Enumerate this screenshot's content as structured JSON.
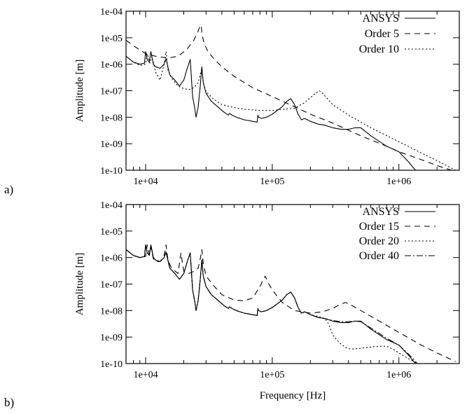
{
  "chart_data": [
    {
      "type": "line",
      "panel_label": "a)",
      "xscale": "log",
      "yscale": "log",
      "xlim": [
        7000,
        3000000
      ],
      "ylim": [
        1e-10,
        0.0001
      ],
      "xticks": [
        "1e+04",
        "1e+05",
        "1e+06"
      ],
      "yticks": [
        "1e-04",
        "1e-05",
        "1e-06",
        "1e-07",
        "1e-08",
        "1e-09",
        "1e-10"
      ],
      "xlabel": "",
      "ylabel": "Amplitude [m]",
      "legend_position": "top-right",
      "grid": false,
      "series": [
        {
          "name": "ANSYS",
          "dash": "solid",
          "x": [
            7000,
            8000,
            9000,
            9800,
            10000,
            10300,
            10700,
            11000,
            11500,
            12000,
            13000,
            14000,
            14500,
            15500,
            17000,
            18500,
            19300,
            20000,
            21500,
            22500,
            23500,
            24500,
            25000,
            26000,
            27000,
            27800,
            28500,
            30000,
            33000,
            37000,
            42000,
            45000,
            46000,
            48000,
            52000,
            60000,
            70000,
            76000,
            77000,
            78000,
            82000,
            90000,
            100000,
            120000,
            130000,
            140000,
            150000,
            160000,
            170000,
            180000,
            190000,
            200000,
            230000,
            260000,
            300000,
            350000,
            400000,
            450000,
            500000,
            600000,
            800000,
            1000000,
            1200000,
            1350000
          ],
          "values": [
            2e-06,
            1.2e-06,
            1e-06,
            1.1e-06,
            3e-06,
            1.5e-06,
            1.2e-06,
            3e-06,
            1e-06,
            8e-07,
            7e-07,
            1e-06,
            1.6e-06,
            4e-07,
            2.5e-07,
            1.5e-07,
            2e-07,
            2.5e-07,
            8e-07,
            1.5e-06,
            6e-08,
            2e-08,
            1e-08,
            2.5e-08,
            1.5e-07,
            8e-07,
            2e-07,
            8e-08,
            4e-08,
            2.5e-08,
            1.5e-08,
            1.2e-08,
            1.4e-08,
            1.2e-08,
            1e-08,
            8e-09,
            7e-09,
            6.5e-09,
            1.2e-08,
            1e-08,
            9e-09,
            1e-08,
            1.3e-08,
            2.5e-08,
            4e-08,
            5e-08,
            3e-08,
            1.3e-08,
            8e-09,
            9e-09,
            8e-09,
            7e-09,
            5.5e-09,
            5e-09,
            4e-09,
            3.5e-09,
            3.5e-09,
            4e-09,
            4e-09,
            2e-09,
            8e-10,
            5e-10,
            2e-10,
            1e-10
          ]
        },
        {
          "name": "Order 5",
          "dash": "8,6",
          "x": [
            7000,
            8000,
            9000,
            10000,
            12000,
            15000,
            18000,
            21000,
            24000,
            26000,
            27000,
            27500,
            28000,
            29000,
            31000,
            35000,
            40000,
            50000,
            70000,
            100000,
            150000,
            200000,
            300000,
            500000,
            800000,
            1000000,
            1500000,
            2000000,
            2600000
          ],
          "values": [
            8e-06,
            5e-06,
            3.5e-06,
            2.5e-06,
            2e-06,
            1.7e-06,
            2e-06,
            3.5e-06,
            8e-06,
            1.8e-05,
            3e-05,
            2.5e-05,
            1.2e-05,
            6e-06,
            3e-06,
            1.5e-06,
            8e-07,
            3.5e-07,
            1.3e-07,
            6e-08,
            2.5e-08,
            1.3e-08,
            6e-09,
            2e-09,
            8e-10,
            5e-10,
            2.5e-10,
            1.5e-10,
            1e-10
          ]
        },
        {
          "name": "Order 10",
          "dash": "2,3",
          "x": [
            7000,
            8000,
            9000,
            10000,
            10300,
            10800,
            11200,
            12000,
            13000,
            14000,
            14500,
            15000,
            16000,
            18000,
            20000,
            22000,
            24000,
            26000,
            27000,
            27800,
            28500,
            30000,
            35000,
            40000,
            50000,
            60000,
            80000,
            100000,
            150000,
            180000,
            200000,
            220000,
            235000,
            250000,
            300000,
            400000,
            600000,
            1000000,
            1500000,
            2000000,
            2800000
          ],
          "values": [
            2e-06,
            1.2e-06,
            9e-07,
            1e-06,
            2.5e-06,
            1.1e-06,
            2e-06,
            5e-07,
            2.5e-07,
            1e-06,
            3e-06,
            6e-07,
            3e-07,
            1.5e-07,
            1.2e-07,
            1.1e-07,
            1.3e-07,
            2e-07,
            4e-07,
            7e-07,
            2e-07,
            9e-08,
            4.5e-08,
            3e-08,
            2.3e-08,
            2e-08,
            1.8e-08,
            1.8e-08,
            2.2e-08,
            3.5e-08,
            5.5e-08,
            8e-08,
            1e-07,
            8e-08,
            3e-08,
            1.2e-08,
            4e-09,
            1.2e-09,
            4.5e-10,
            2.3e-10,
            1e-10
          ]
        }
      ]
    },
    {
      "type": "line",
      "panel_label": "b)",
      "xscale": "log",
      "yscale": "log",
      "xlim": [
        7000,
        3000000
      ],
      "ylim": [
        1e-10,
        0.0001
      ],
      "xticks": [
        "1e+04",
        "1e+05",
        "1e+06"
      ],
      "yticks": [
        "1e-04",
        "1e-05",
        "1e-06",
        "1e-07",
        "1e-08",
        "1e-09",
        "1e-10"
      ],
      "xlabel": "Frequency [Hz]",
      "ylabel": "Amplitude [m]",
      "legend_position": "top-right",
      "grid": false,
      "series": [
        {
          "name": "ANSYS",
          "dash": "solid",
          "x": [
            7000,
            8000,
            9000,
            9800,
            10000,
            10300,
            10700,
            11000,
            11500,
            12000,
            13000,
            14000,
            14500,
            15500,
            17000,
            18500,
            19300,
            20000,
            21500,
            22500,
            23500,
            24500,
            25000,
            26000,
            27000,
            27800,
            28500,
            30000,
            33000,
            37000,
            42000,
            45000,
            46000,
            48000,
            52000,
            60000,
            70000,
            76000,
            77000,
            78000,
            82000,
            90000,
            100000,
            120000,
            130000,
            140000,
            150000,
            160000,
            170000,
            180000,
            190000,
            200000,
            230000,
            260000,
            300000,
            350000,
            400000,
            450000,
            500000,
            600000,
            800000,
            1000000,
            1200000,
            1350000
          ],
          "values": [
            2e-06,
            1.2e-06,
            1e-06,
            1.1e-06,
            3e-06,
            1.5e-06,
            1.2e-06,
            3e-06,
            1e-06,
            8e-07,
            7e-07,
            1e-06,
            1.6e-06,
            4e-07,
            2.5e-07,
            1.5e-07,
            2e-07,
            2.5e-07,
            8e-07,
            1.5e-06,
            6e-08,
            2e-08,
            1e-08,
            2.5e-08,
            1.5e-07,
            8e-07,
            2e-07,
            8e-08,
            4e-08,
            2.5e-08,
            1.5e-08,
            1.2e-08,
            1.4e-08,
            1.2e-08,
            1e-08,
            8e-09,
            7e-09,
            6.5e-09,
            1.2e-08,
            1e-08,
            9e-09,
            1e-08,
            1.3e-08,
            2.5e-08,
            4e-08,
            5e-08,
            3e-08,
            1.3e-08,
            8e-09,
            9e-09,
            8e-09,
            7e-09,
            5.5e-09,
            5e-09,
            4e-09,
            3.5e-09,
            3.5e-09,
            4e-09,
            4e-09,
            2e-09,
            8e-10,
            5e-10,
            2e-10,
            1e-10
          ]
        },
        {
          "name": "Order 15",
          "dash": "8,6",
          "x": [
            7000,
            8000,
            9000,
            10000,
            10300,
            10700,
            11000,
            11500,
            12000,
            13000,
            14000,
            14500,
            15000,
            16000,
            18000,
            19000,
            20000,
            22000,
            24000,
            26000,
            27000,
            27800,
            28500,
            30000,
            35000,
            40000,
            50000,
            60000,
            70000,
            80000,
            85000,
            88000,
            92000,
            100000,
            120000,
            150000,
            200000,
            250000,
            300000,
            350000,
            380000,
            420000,
            500000,
            700000,
            1000000,
            1500000,
            2000000,
            2800000
          ],
          "values": [
            2e-06,
            1.2e-06,
            1e-06,
            1.1e-06,
            3e-06,
            1.3e-06,
            2.5e-06,
            9e-07,
            7e-07,
            7e-07,
            1.2e-06,
            3e-06,
            8e-07,
            4e-07,
            2.5e-07,
            1.5e-06,
            3e-07,
            2.5e-07,
            3e-07,
            4e-07,
            9e-07,
            2e-06,
            6e-07,
            2e-07,
            8e-08,
            4e-08,
            2.5e-08,
            2.3e-08,
            3e-08,
            8e-08,
            1.5e-07,
            2e-07,
            1.2e-07,
            6e-08,
            2e-08,
            1e-08,
            8e-09,
            9e-09,
            1.2e-08,
            1.8e-08,
            2e-08,
            1.6e-08,
            1e-08,
            4e-09,
            1.5e-09,
            5e-10,
            2.5e-10,
            1.2e-10
          ]
        },
        {
          "name": "Order 20",
          "dash": "2,3",
          "x": [
            7000,
            8000,
            9000,
            9800,
            10000,
            10300,
            10700,
            11000,
            11500,
            12000,
            13000,
            14000,
            14500,
            15500,
            17000,
            18500,
            19300,
            20000,
            21500,
            22500,
            23500,
            24500,
            25000,
            26000,
            27000,
            27800,
            28500,
            30000,
            33000,
            37000,
            42000,
            45000,
            46000,
            48000,
            52000,
            60000,
            70000,
            76000,
            77000,
            78000,
            82000,
            90000,
            100000,
            120000,
            130000,
            140000,
            150000,
            160000,
            170000,
            180000,
            190000,
            200000,
            230000,
            260000,
            280000,
            300000,
            340000,
            380000,
            420000,
            500000,
            600000,
            700000,
            800000,
            900000,
            1000000,
            1200000,
            1400000
          ],
          "values": [
            2e-06,
            1.2e-06,
            1e-06,
            1.1e-06,
            3e-06,
            1.5e-06,
            1.2e-06,
            3e-06,
            1e-06,
            8e-07,
            7e-07,
            1e-06,
            1.6e-06,
            4e-07,
            2.5e-07,
            1.5e-07,
            2e-07,
            2.5e-07,
            8e-07,
            1.5e-06,
            6e-08,
            2e-08,
            1e-08,
            2.5e-08,
            1.5e-07,
            8e-07,
            2e-07,
            8e-08,
            4e-08,
            2.5e-08,
            1.5e-08,
            1.2e-08,
            1.4e-08,
            1.2e-08,
            1e-08,
            8e-09,
            7e-09,
            6.5e-09,
            1.2e-08,
            1e-08,
            9e-09,
            1e-08,
            1.3e-08,
            2.5e-08,
            4e-08,
            5e-08,
            3e-08,
            1.3e-08,
            8e-09,
            9e-09,
            8e-09,
            7e-09,
            6e-09,
            5e-09,
            3e-09,
            1.2e-09,
            6e-10,
            4e-10,
            3.5e-10,
            3.8e-10,
            4.2e-10,
            4.5e-10,
            4.5e-10,
            3.5e-10,
            2.5e-10,
            1.5e-10,
            1e-10
          ]
        },
        {
          "name": "Order 40",
          "dash": "9,3,2,3",
          "x": [
            7000,
            8000,
            9000,
            9800,
            10000,
            10300,
            10700,
            11000,
            11500,
            12000,
            13000,
            14000,
            14500,
            15500,
            17000,
            18500,
            19300,
            20000,
            21500,
            22500,
            23500,
            24500,
            25000,
            26000,
            27000,
            27800,
            28500,
            30000,
            33000,
            37000,
            42000,
            45000,
            46000,
            48000,
            52000,
            60000,
            70000,
            76000,
            77000,
            78000,
            82000,
            90000,
            100000,
            120000,
            130000,
            140000,
            150000,
            160000,
            170000,
            180000,
            190000,
            200000,
            230000,
            260000,
            300000,
            350000,
            400000,
            450000,
            500000,
            600000,
            800000,
            1000000,
            1200000,
            1400000
          ],
          "values": [
            2e-06,
            1.2e-06,
            1e-06,
            1.1e-06,
            3e-06,
            1.5e-06,
            1.2e-06,
            3e-06,
            1e-06,
            8e-07,
            7e-07,
            1e-06,
            1.6e-06,
            4e-07,
            2.5e-07,
            1.5e-07,
            2e-07,
            2.5e-07,
            8e-07,
            1.5e-06,
            6e-08,
            2e-08,
            1e-08,
            2.5e-08,
            1.5e-07,
            8e-07,
            2e-07,
            8e-08,
            4e-08,
            2.5e-08,
            1.5e-08,
            1.2e-08,
            1.4e-08,
            1.2e-08,
            1e-08,
            8e-09,
            7e-09,
            6.5e-09,
            1.2e-08,
            1e-08,
            9e-09,
            1e-08,
            1.3e-08,
            2.5e-08,
            4e-08,
            5e-08,
            3e-08,
            1.3e-08,
            8e-09,
            9e-09,
            8e-09,
            7e-09,
            5.5e-09,
            5e-09,
            4.2e-09,
            3.8e-09,
            3.8e-09,
            4e-09,
            3.8e-09,
            2.2e-09,
            9e-10,
            5e-10,
            2.2e-10,
            1e-10
          ]
        }
      ]
    }
  ]
}
